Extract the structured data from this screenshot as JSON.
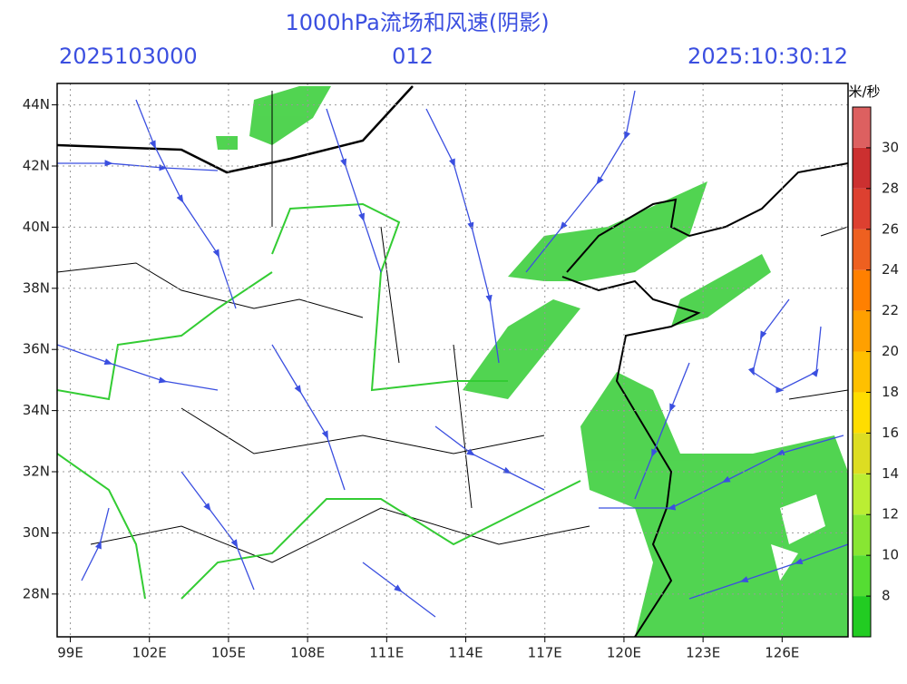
{
  "header": {
    "title": "1000hPa流场和风速(阴影)",
    "left": "2025103000",
    "center": "012",
    "right": "2025:10:30:12"
  },
  "map": {
    "xlim": [
      98.5,
      128.5
    ],
    "ylim": [
      26.6,
      44.7
    ],
    "xticks": [
      {
        "value": 99,
        "label": "99E"
      },
      {
        "value": 102,
        "label": "102E"
      },
      {
        "value": 105,
        "label": "105E"
      },
      {
        "value": 108,
        "label": "108E"
      },
      {
        "value": 111,
        "label": "111E"
      },
      {
        "value": 114,
        "label": "114E"
      },
      {
        "value": 117,
        "label": "117E"
      },
      {
        "value": 120,
        "label": "120E"
      },
      {
        "value": 123,
        "label": "123E"
      },
      {
        "value": 126,
        "label": "126E"
      }
    ],
    "yticks": [
      {
        "value": 28,
        "label": "28N"
      },
      {
        "value": 30,
        "label": "30N"
      },
      {
        "value": 32,
        "label": "32N"
      },
      {
        "value": 34,
        "label": "34N"
      },
      {
        "value": 36,
        "label": "36N"
      },
      {
        "value": 38,
        "label": "38N"
      },
      {
        "value": 40,
        "label": "40N"
      },
      {
        "value": 42,
        "label": "42N"
      },
      {
        "value": 44,
        "label": "44N"
      }
    ]
  },
  "colorbar": {
    "unit": "米/秒",
    "ylim": [
      6,
      32
    ],
    "ticks": [
      8,
      10,
      12,
      14,
      16,
      18,
      20,
      22,
      24,
      26,
      28,
      30
    ],
    "colors": [
      "#22cc22",
      "#55dd33",
      "#88e633",
      "#bbee33",
      "#dddd22",
      "#ffdd00",
      "#ffc000",
      "#ffa000",
      "#ff8000",
      "#ee6020",
      "#dd4030",
      "#cc3030",
      "#dd6060"
    ]
  }
}
